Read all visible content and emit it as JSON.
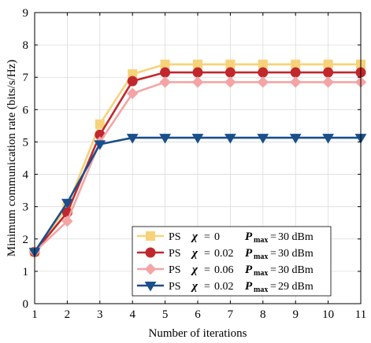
{
  "chart_data": {
    "type": "line",
    "xlabel": "Number of iterations",
    "ylabel": "Minimum communication rate (bits/s/Hz)",
    "xlim": [
      1,
      11
    ],
    "ylim": [
      0,
      9
    ],
    "xticks": [
      1,
      2,
      3,
      4,
      5,
      6,
      7,
      8,
      9,
      10,
      11
    ],
    "yticks": [
      0,
      1,
      2,
      3,
      4,
      5,
      6,
      7,
      8,
      9
    ],
    "grid": true,
    "legend_position": "bottom-right",
    "x": [
      1,
      2,
      3,
      4,
      5,
      6,
      7,
      8,
      9,
      10,
      11
    ],
    "series": [
      {
        "values": [
          1.6,
          3.0,
          5.55,
          7.1,
          7.4,
          7.4,
          7.4,
          7.4,
          7.4,
          7.4,
          7.4
        ],
        "color": "#f7d27a",
        "marker": "square",
        "legend": {
          "mode": "PS",
          "chi_value": "0",
          "pmax_value": "30 dBm"
        }
      },
      {
        "values": [
          1.6,
          2.82,
          5.22,
          6.88,
          7.15,
          7.15,
          7.15,
          7.15,
          7.15,
          7.15,
          7.15
        ],
        "color": "#c0282d",
        "marker": "circle",
        "legend": {
          "mode": "PS",
          "chi_value": "0.02",
          "pmax_value": "30 dBm"
        }
      },
      {
        "values": [
          1.6,
          2.55,
          5.0,
          6.5,
          6.85,
          6.85,
          6.85,
          6.85,
          6.85,
          6.85,
          6.85
        ],
        "color": "#f4a4a4",
        "marker": "diamond",
        "legend": {
          "mode": "PS",
          "chi_value": "0.06",
          "pmax_value": "30 dBm"
        }
      },
      {
        "values": [
          1.6,
          3.12,
          4.93,
          5.13,
          5.13,
          5.13,
          5.13,
          5.13,
          5.13,
          5.13,
          5.13
        ],
        "color": "#1a4f8b",
        "marker": "triangle-down",
        "legend": {
          "mode": "PS",
          "chi_value": "0.02",
          "pmax_value": "29 dBm"
        }
      }
    ],
    "legend_symbols": {
      "chi": "χ",
      "pmax": "P",
      "pmax_sub": "max",
      "equals": "="
    }
  }
}
